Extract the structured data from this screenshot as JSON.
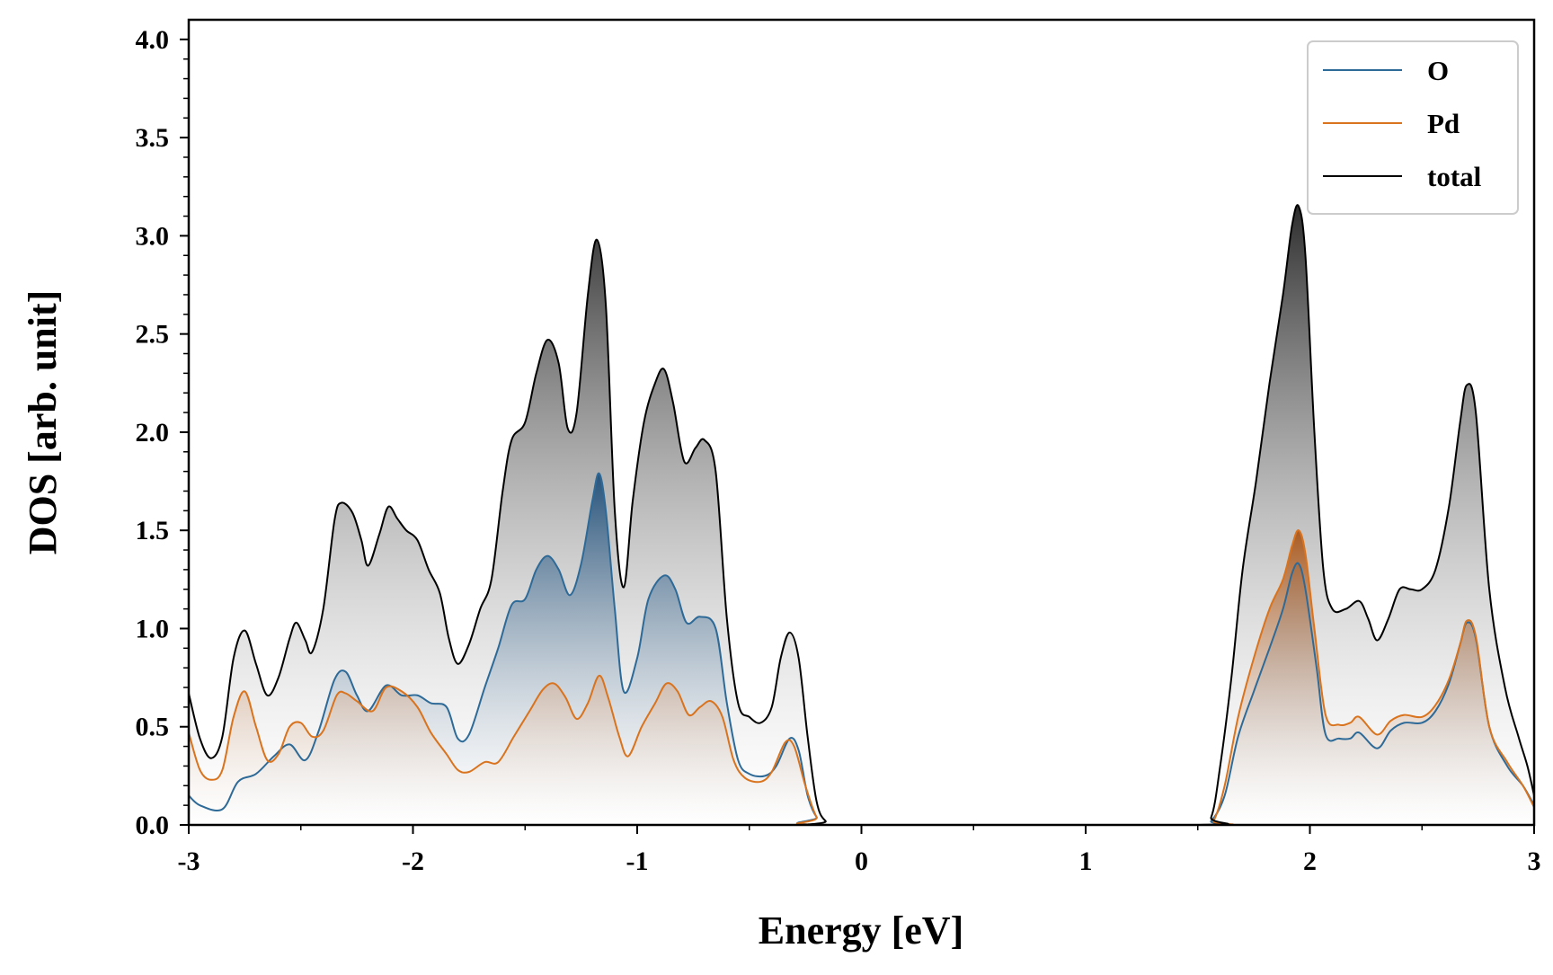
{
  "chart_data": {
    "type": "area",
    "title": "",
    "xlabel": "Energy [eV]",
    "ylabel": "DOS [arb. unit]",
    "xlim": [
      -3,
      3
    ],
    "ylim": [
      0,
      4.1
    ],
    "x_ticks": [
      -3,
      -2,
      -1,
      0,
      1,
      2,
      3
    ],
    "x_tick_labels": [
      "-3",
      "-2",
      "-1",
      "0",
      "1",
      "2",
      "3"
    ],
    "y_ticks": [
      0,
      0.5,
      1.0,
      1.5,
      2.0,
      2.5,
      3.0,
      3.5,
      4.0
    ],
    "y_tick_labels": [
      "0.0",
      "0.5",
      "1.0",
      "1.5",
      "2.0",
      "2.5",
      "3.0",
      "3.5",
      "4.0"
    ],
    "grid": false,
    "legend_position": "top-right",
    "series": [
      {
        "name": "O",
        "color": "#2e6a97",
        "points": [
          [
            -3.0,
            0.15
          ],
          [
            -2.95,
            0.1
          ],
          [
            -2.85,
            0.08
          ],
          [
            -2.78,
            0.22
          ],
          [
            -2.7,
            0.26
          ],
          [
            -2.62,
            0.35
          ],
          [
            -2.55,
            0.41
          ],
          [
            -2.48,
            0.33
          ],
          [
            -2.42,
            0.48
          ],
          [
            -2.35,
            0.74
          ],
          [
            -2.3,
            0.78
          ],
          [
            -2.25,
            0.66
          ],
          [
            -2.2,
            0.58
          ],
          [
            -2.12,
            0.71
          ],
          [
            -2.05,
            0.66
          ],
          [
            -1.98,
            0.66
          ],
          [
            -1.92,
            0.62
          ],
          [
            -1.85,
            0.6
          ],
          [
            -1.8,
            0.44
          ],
          [
            -1.75,
            0.46
          ],
          [
            -1.68,
            0.7
          ],
          [
            -1.62,
            0.9
          ],
          [
            -1.56,
            1.12
          ],
          [
            -1.5,
            1.15
          ],
          [
            -1.45,
            1.3
          ],
          [
            -1.4,
            1.37
          ],
          [
            -1.35,
            1.3
          ],
          [
            -1.3,
            1.17
          ],
          [
            -1.25,
            1.33
          ],
          [
            -1.2,
            1.65
          ],
          [
            -1.17,
            1.79
          ],
          [
            -1.14,
            1.6
          ],
          [
            -1.1,
            1.1
          ],
          [
            -1.06,
            0.68
          ],
          [
            -1.0,
            0.85
          ],
          [
            -0.95,
            1.15
          ],
          [
            -0.88,
            1.27
          ],
          [
            -0.83,
            1.2
          ],
          [
            -0.78,
            1.03
          ],
          [
            -0.72,
            1.06
          ],
          [
            -0.65,
            1.0
          ],
          [
            -0.6,
            0.62
          ],
          [
            -0.55,
            0.33
          ],
          [
            -0.5,
            0.26
          ],
          [
            -0.43,
            0.25
          ],
          [
            -0.38,
            0.3
          ],
          [
            -0.32,
            0.44
          ],
          [
            -0.28,
            0.38
          ],
          [
            -0.24,
            0.15
          ],
          [
            -0.2,
            0.04
          ],
          [
            -0.15,
            0.0
          ],
          [
            1.5,
            0.0
          ],
          [
            1.56,
            0.02
          ],
          [
            1.62,
            0.15
          ],
          [
            1.68,
            0.45
          ],
          [
            1.75,
            0.68
          ],
          [
            1.82,
            0.9
          ],
          [
            1.88,
            1.1
          ],
          [
            1.92,
            1.28
          ],
          [
            1.95,
            1.33
          ],
          [
            1.98,
            1.2
          ],
          [
            2.03,
            0.8
          ],
          [
            2.07,
            0.46
          ],
          [
            2.13,
            0.44
          ],
          [
            2.18,
            0.44
          ],
          [
            2.22,
            0.47
          ],
          [
            2.3,
            0.39
          ],
          [
            2.36,
            0.48
          ],
          [
            2.42,
            0.52
          ],
          [
            2.5,
            0.52
          ],
          [
            2.56,
            0.58
          ],
          [
            2.62,
            0.72
          ],
          [
            2.67,
            0.92
          ],
          [
            2.7,
            1.03
          ],
          [
            2.74,
            0.95
          ],
          [
            2.8,
            0.5
          ],
          [
            2.88,
            0.3
          ],
          [
            2.95,
            0.2
          ],
          [
            3.0,
            0.1
          ]
        ]
      },
      {
        "name": "Pd",
        "color": "#d9731d",
        "points": [
          [
            -3.0,
            0.47
          ],
          [
            -2.95,
            0.28
          ],
          [
            -2.9,
            0.23
          ],
          [
            -2.85,
            0.28
          ],
          [
            -2.8,
            0.55
          ],
          [
            -2.75,
            0.68
          ],
          [
            -2.7,
            0.5
          ],
          [
            -2.65,
            0.33
          ],
          [
            -2.6,
            0.36
          ],
          [
            -2.55,
            0.5
          ],
          [
            -2.5,
            0.52
          ],
          [
            -2.45,
            0.45
          ],
          [
            -2.4,
            0.48
          ],
          [
            -2.34,
            0.66
          ],
          [
            -2.3,
            0.67
          ],
          [
            -2.25,
            0.63
          ],
          [
            -2.18,
            0.58
          ],
          [
            -2.12,
            0.7
          ],
          [
            -2.05,
            0.68
          ],
          [
            -1.98,
            0.6
          ],
          [
            -1.92,
            0.47
          ],
          [
            -1.85,
            0.36
          ],
          [
            -1.8,
            0.28
          ],
          [
            -1.75,
            0.27
          ],
          [
            -1.68,
            0.32
          ],
          [
            -1.62,
            0.32
          ],
          [
            -1.55,
            0.45
          ],
          [
            -1.48,
            0.58
          ],
          [
            -1.42,
            0.69
          ],
          [
            -1.37,
            0.72
          ],
          [
            -1.32,
            0.65
          ],
          [
            -1.27,
            0.54
          ],
          [
            -1.22,
            0.62
          ],
          [
            -1.17,
            0.76
          ],
          [
            -1.13,
            0.65
          ],
          [
            -1.08,
            0.45
          ],
          [
            -1.04,
            0.35
          ],
          [
            -0.98,
            0.5
          ],
          [
            -0.92,
            0.62
          ],
          [
            -0.87,
            0.72
          ],
          [
            -0.82,
            0.68
          ],
          [
            -0.77,
            0.56
          ],
          [
            -0.72,
            0.6
          ],
          [
            -0.67,
            0.63
          ],
          [
            -0.62,
            0.55
          ],
          [
            -0.57,
            0.33
          ],
          [
            -0.52,
            0.24
          ],
          [
            -0.45,
            0.22
          ],
          [
            -0.4,
            0.27
          ],
          [
            -0.34,
            0.42
          ],
          [
            -0.3,
            0.4
          ],
          [
            -0.25,
            0.2
          ],
          [
            -0.2,
            0.04
          ],
          [
            -0.15,
            0.0
          ],
          [
            1.52,
            0.0
          ],
          [
            1.57,
            0.02
          ],
          [
            1.62,
            0.2
          ],
          [
            1.68,
            0.55
          ],
          [
            1.75,
            0.85
          ],
          [
            1.82,
            1.1
          ],
          [
            1.88,
            1.25
          ],
          [
            1.92,
            1.42
          ],
          [
            1.95,
            1.5
          ],
          [
            1.98,
            1.38
          ],
          [
            2.02,
            1.0
          ],
          [
            2.07,
            0.56
          ],
          [
            2.13,
            0.51
          ],
          [
            2.18,
            0.52
          ],
          [
            2.22,
            0.55
          ],
          [
            2.3,
            0.46
          ],
          [
            2.36,
            0.53
          ],
          [
            2.42,
            0.56
          ],
          [
            2.5,
            0.55
          ],
          [
            2.56,
            0.61
          ],
          [
            2.62,
            0.74
          ],
          [
            2.67,
            0.92
          ],
          [
            2.7,
            1.04
          ],
          [
            2.74,
            0.96
          ],
          [
            2.8,
            0.5
          ],
          [
            2.88,
            0.32
          ],
          [
            2.95,
            0.2
          ],
          [
            3.0,
            0.09
          ]
        ]
      },
      {
        "name": "total",
        "color": "#000000",
        "points": [
          [
            -3.0,
            0.67
          ],
          [
            -2.95,
            0.44
          ],
          [
            -2.9,
            0.34
          ],
          [
            -2.85,
            0.45
          ],
          [
            -2.8,
            0.85
          ],
          [
            -2.75,
            0.99
          ],
          [
            -2.7,
            0.82
          ],
          [
            -2.65,
            0.66
          ],
          [
            -2.6,
            0.75
          ],
          [
            -2.55,
            0.95
          ],
          [
            -2.52,
            1.03
          ],
          [
            -2.48,
            0.94
          ],
          [
            -2.45,
            0.88
          ],
          [
            -2.4,
            1.1
          ],
          [
            -2.35,
            1.55
          ],
          [
            -2.32,
            1.64
          ],
          [
            -2.27,
            1.59
          ],
          [
            -2.23,
            1.45
          ],
          [
            -2.2,
            1.32
          ],
          [
            -2.15,
            1.48
          ],
          [
            -2.11,
            1.62
          ],
          [
            -2.07,
            1.56
          ],
          [
            -2.03,
            1.5
          ],
          [
            -1.98,
            1.45
          ],
          [
            -1.93,
            1.3
          ],
          [
            -1.88,
            1.18
          ],
          [
            -1.84,
            0.95
          ],
          [
            -1.8,
            0.82
          ],
          [
            -1.75,
            0.92
          ],
          [
            -1.7,
            1.1
          ],
          [
            -1.65,
            1.25
          ],
          [
            -1.6,
            1.7
          ],
          [
            -1.56,
            1.96
          ],
          [
            -1.5,
            2.05
          ],
          [
            -1.45,
            2.3
          ],
          [
            -1.4,
            2.47
          ],
          [
            -1.35,
            2.35
          ],
          [
            -1.31,
            2.02
          ],
          [
            -1.27,
            2.1
          ],
          [
            -1.22,
            2.7
          ],
          [
            -1.18,
            2.98
          ],
          [
            -1.14,
            2.65
          ],
          [
            -1.1,
            1.6
          ],
          [
            -1.06,
            1.21
          ],
          [
            -1.02,
            1.65
          ],
          [
            -0.97,
            2.05
          ],
          [
            -0.92,
            2.25
          ],
          [
            -0.88,
            2.32
          ],
          [
            -0.84,
            2.15
          ],
          [
            -0.79,
            1.85
          ],
          [
            -0.74,
            1.92
          ],
          [
            -0.7,
            1.96
          ],
          [
            -0.65,
            1.8
          ],
          [
            -0.6,
            1.05
          ],
          [
            -0.55,
            0.62
          ],
          [
            -0.5,
            0.55
          ],
          [
            -0.45,
            0.52
          ],
          [
            -0.4,
            0.6
          ],
          [
            -0.36,
            0.85
          ],
          [
            -0.32,
            0.98
          ],
          [
            -0.28,
            0.85
          ],
          [
            -0.24,
            0.45
          ],
          [
            -0.2,
            0.12
          ],
          [
            -0.16,
            0.02
          ],
          [
            -0.1,
            0.0
          ],
          [
            1.5,
            0.0
          ],
          [
            1.56,
            0.04
          ],
          [
            1.6,
            0.3
          ],
          [
            1.65,
            0.75
          ],
          [
            1.7,
            1.3
          ],
          [
            1.76,
            1.75
          ],
          [
            1.82,
            2.25
          ],
          [
            1.88,
            2.7
          ],
          [
            1.92,
            3.05
          ],
          [
            1.95,
            3.15
          ],
          [
            1.98,
            2.9
          ],
          [
            2.02,
            2.0
          ],
          [
            2.06,
            1.3
          ],
          [
            2.1,
            1.1
          ],
          [
            2.16,
            1.1
          ],
          [
            2.22,
            1.14
          ],
          [
            2.26,
            1.05
          ],
          [
            2.3,
            0.94
          ],
          [
            2.35,
            1.05
          ],
          [
            2.4,
            1.2
          ],
          [
            2.45,
            1.2
          ],
          [
            2.5,
            1.2
          ],
          [
            2.56,
            1.3
          ],
          [
            2.62,
            1.62
          ],
          [
            2.67,
            2.05
          ],
          [
            2.7,
            2.24
          ],
          [
            2.74,
            2.1
          ],
          [
            2.8,
            1.2
          ],
          [
            2.87,
            0.7
          ],
          [
            2.93,
            0.45
          ],
          [
            2.97,
            0.3
          ],
          [
            3.0,
            0.15
          ]
        ]
      }
    ]
  },
  "legend": {
    "items": [
      {
        "label": "O",
        "color": "#2e6a97"
      },
      {
        "label": "Pd",
        "color": "#d9731d"
      },
      {
        "label": "total",
        "color": "#000000"
      }
    ]
  }
}
